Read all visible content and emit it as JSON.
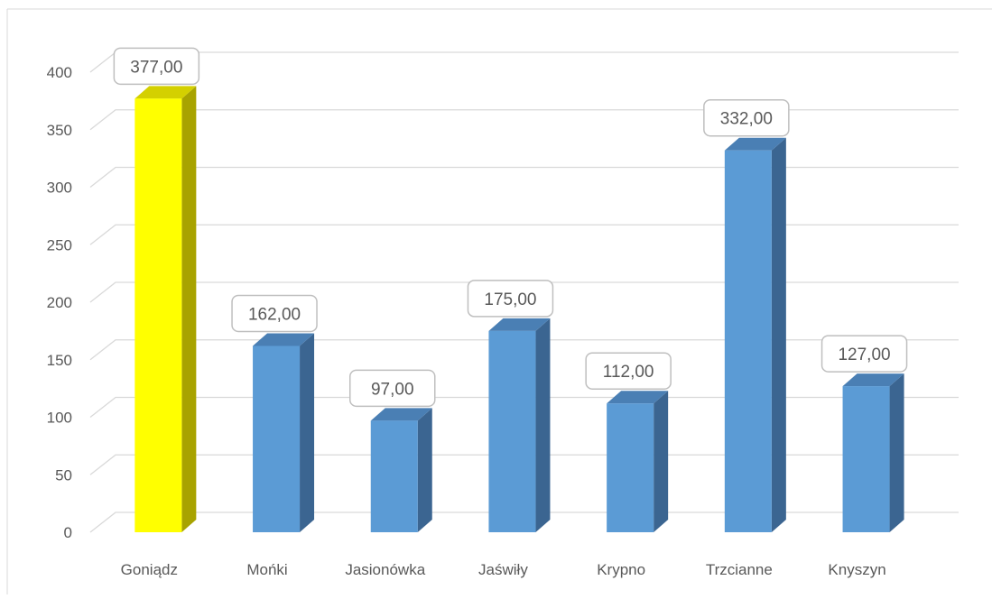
{
  "chart_data": {
    "type": "bar",
    "title": "",
    "xlabel": "",
    "ylabel": "",
    "categories": [
      "Goniądz",
      "Mońki",
      "Jasionówka",
      "Jaświły",
      "Krypno",
      "Trzcianne",
      "Knyszyn"
    ],
    "values": [
      377,
      162,
      97,
      175,
      112,
      332,
      127
    ],
    "data_labels": [
      "377,00",
      "162,00",
      "97,00",
      "175,00",
      "112,00",
      "332,00",
      "127,00"
    ],
    "ylim": [
      0,
      400
    ],
    "yticks": [
      0,
      50,
      100,
      150,
      200,
      250,
      300,
      350,
      400
    ],
    "grid": true,
    "legend": "none",
    "colors": {
      "bar_default": "#5b9bd5",
      "bar_default_side": "#3b6591",
      "bar_default_top": "#4a7fb4",
      "bar_highlight": "#ffff00",
      "bar_highlight_side": "#a8a300",
      "bar_highlight_top": "#d4d000",
      "highlight_index": 0,
      "gridline": "#d9d9d9",
      "tick_text": "#595959",
      "label_border": "#bfbfbf"
    }
  }
}
